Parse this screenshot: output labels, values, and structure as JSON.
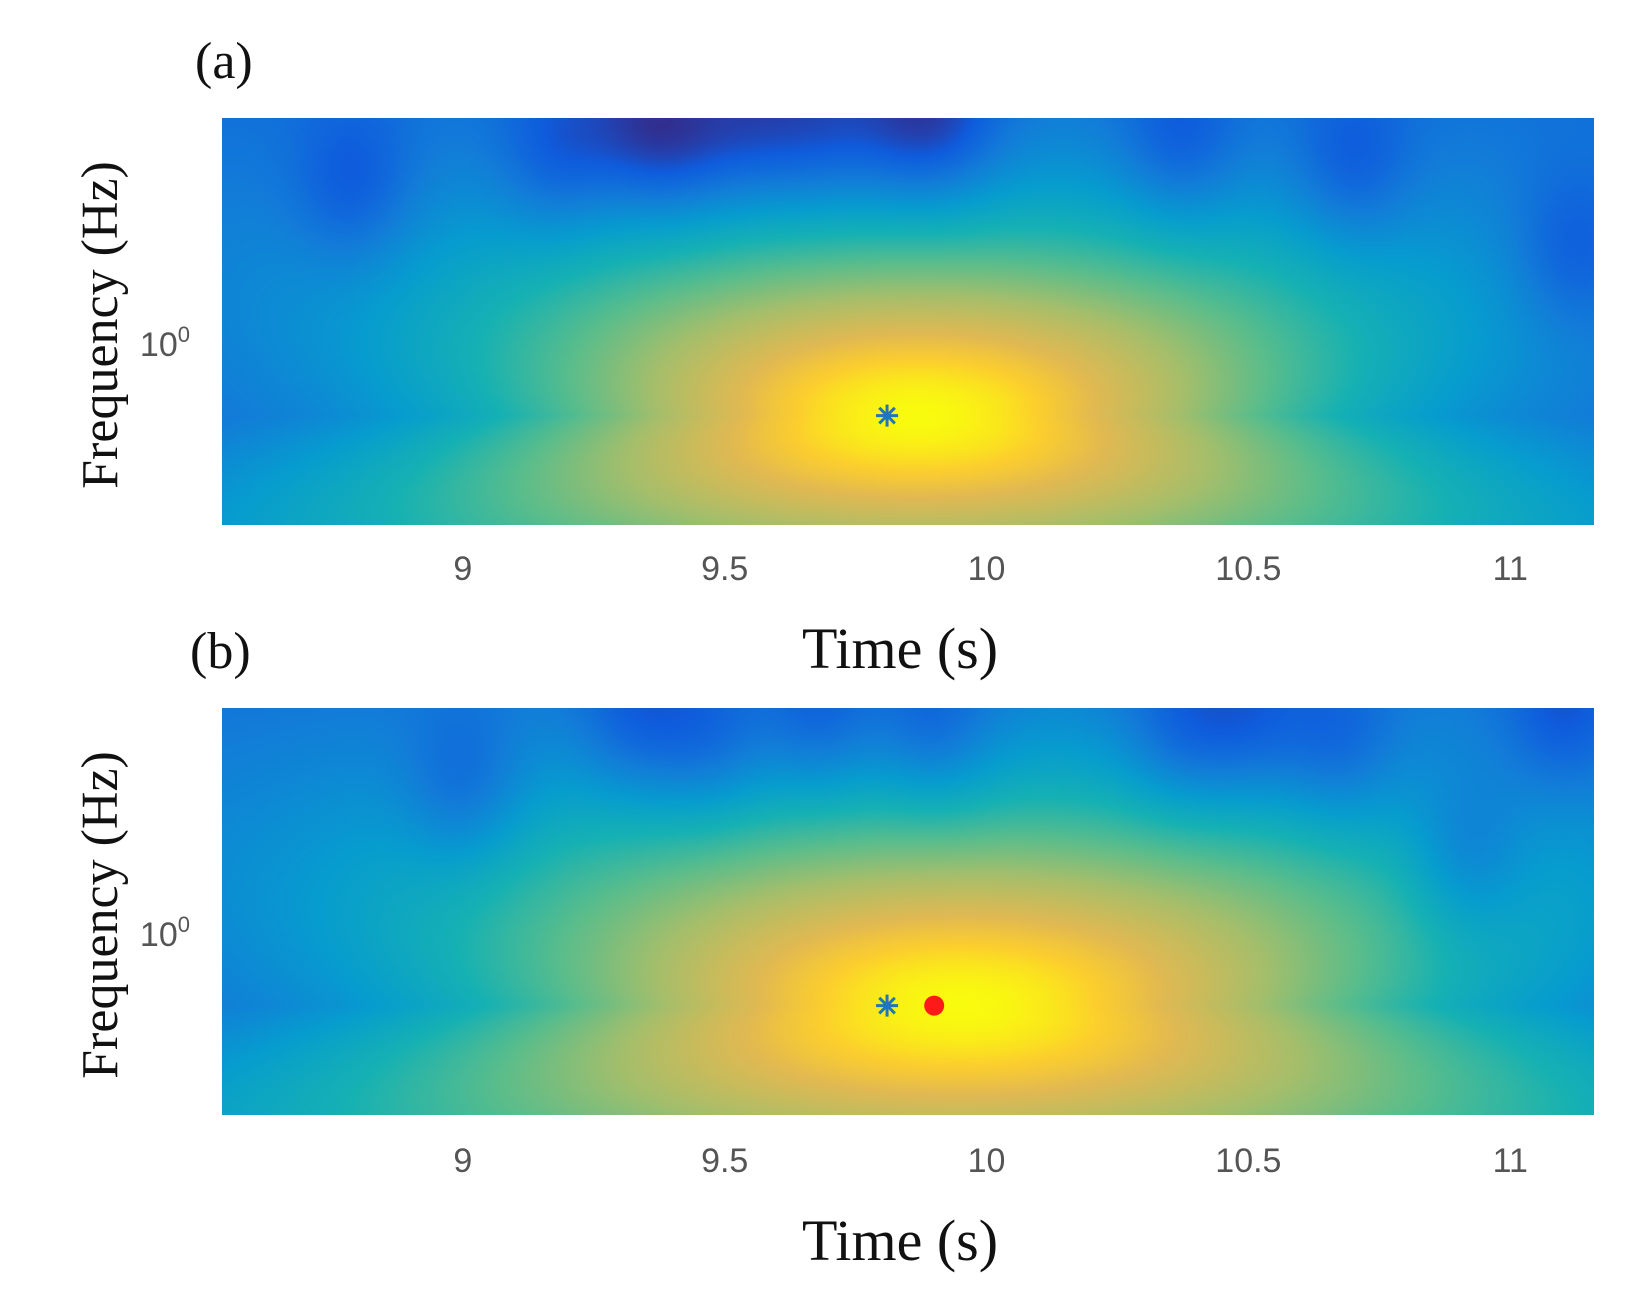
{
  "chart_data": [
    {
      "type": "heatmap",
      "panel_label": "(a)",
      "xlabel": "Time (s)",
      "ylabel": "Frequency (Hz)",
      "x_ticks": [
        "9",
        "9.5",
        "10",
        "10.5",
        "11"
      ],
      "x_tick_values": [
        9,
        9.5,
        10,
        10.5,
        11
      ],
      "xlim": [
        8.54,
        11.16
      ],
      "y_scale": "log",
      "y_tick_base": "10",
      "y_tick_exponent": "0",
      "y_tick_values": [
        1
      ],
      "ylim": [
        0.35,
        2.6
      ],
      "colormap": "parula",
      "blob": {
        "center_time": 9.87,
        "center_freq": 0.6,
        "time_halfwidth": 0.58,
        "freq_spread": 0.55
      },
      "dark_spots": [
        {
          "time": 8.79,
          "freq": 1.85
        },
        {
          "time": 9.18,
          "freq": 2.15
        },
        {
          "time": 9.33,
          "freq": 2.45
        },
        {
          "time": 9.42,
          "freq": 2.3
        },
        {
          "time": 9.55,
          "freq": 2.5
        },
        {
          "time": 9.68,
          "freq": 2.45
        },
        {
          "time": 9.83,
          "freq": 2.5
        },
        {
          "time": 9.93,
          "freq": 2.5
        },
        {
          "time": 10.37,
          "freq": 2.3
        },
        {
          "time": 10.7,
          "freq": 2.05
        },
        {
          "time": 11.12,
          "freq": 1.35
        }
      ],
      "markers": [
        {
          "name": "blue-asterisk",
          "time": 9.81,
          "freq": 0.6,
          "color": "#1f77b4",
          "symbol": "*"
        }
      ]
    },
    {
      "type": "heatmap",
      "panel_label": "(b)",
      "xlabel": "Time (s)",
      "ylabel": "Frequency (Hz)",
      "x_ticks": [
        "9",
        "9.5",
        "10",
        "10.5",
        "11"
      ],
      "x_tick_values": [
        9,
        9.5,
        10,
        10.5,
        11
      ],
      "xlim": [
        8.54,
        11.16
      ],
      "y_scale": "log",
      "y_tick_base": "10",
      "y_tick_exponent": "0",
      "y_tick_values": [
        1
      ],
      "ylim": [
        0.35,
        2.6
      ],
      "colormap": "parula",
      "blob": {
        "center_time": 9.95,
        "center_freq": 0.6,
        "time_halfwidth": 0.66,
        "freq_spread": 0.6
      },
      "dark_spots": [
        {
          "time": 9.0,
          "freq": 1.75
        },
        {
          "time": 9.33,
          "freq": 2.45
        },
        {
          "time": 9.47,
          "freq": 2.2
        },
        {
          "time": 9.68,
          "freq": 2.45
        },
        {
          "time": 9.9,
          "freq": 2.35
        },
        {
          "time": 10.37,
          "freq": 2.3
        },
        {
          "time": 10.5,
          "freq": 2.4
        },
        {
          "time": 10.67,
          "freq": 2.15
        },
        {
          "time": 10.92,
          "freq": 1.25
        },
        {
          "time": 11.1,
          "freq": 2.5
        }
      ],
      "markers": [
        {
          "name": "blue-asterisk",
          "time": 9.81,
          "freq": 0.6,
          "color": "#1f77b4",
          "symbol": "*"
        },
        {
          "name": "red-dot",
          "time": 9.9,
          "freq": 0.6,
          "color": "#ff1a1a",
          "symbol": "o"
        }
      ]
    }
  ]
}
